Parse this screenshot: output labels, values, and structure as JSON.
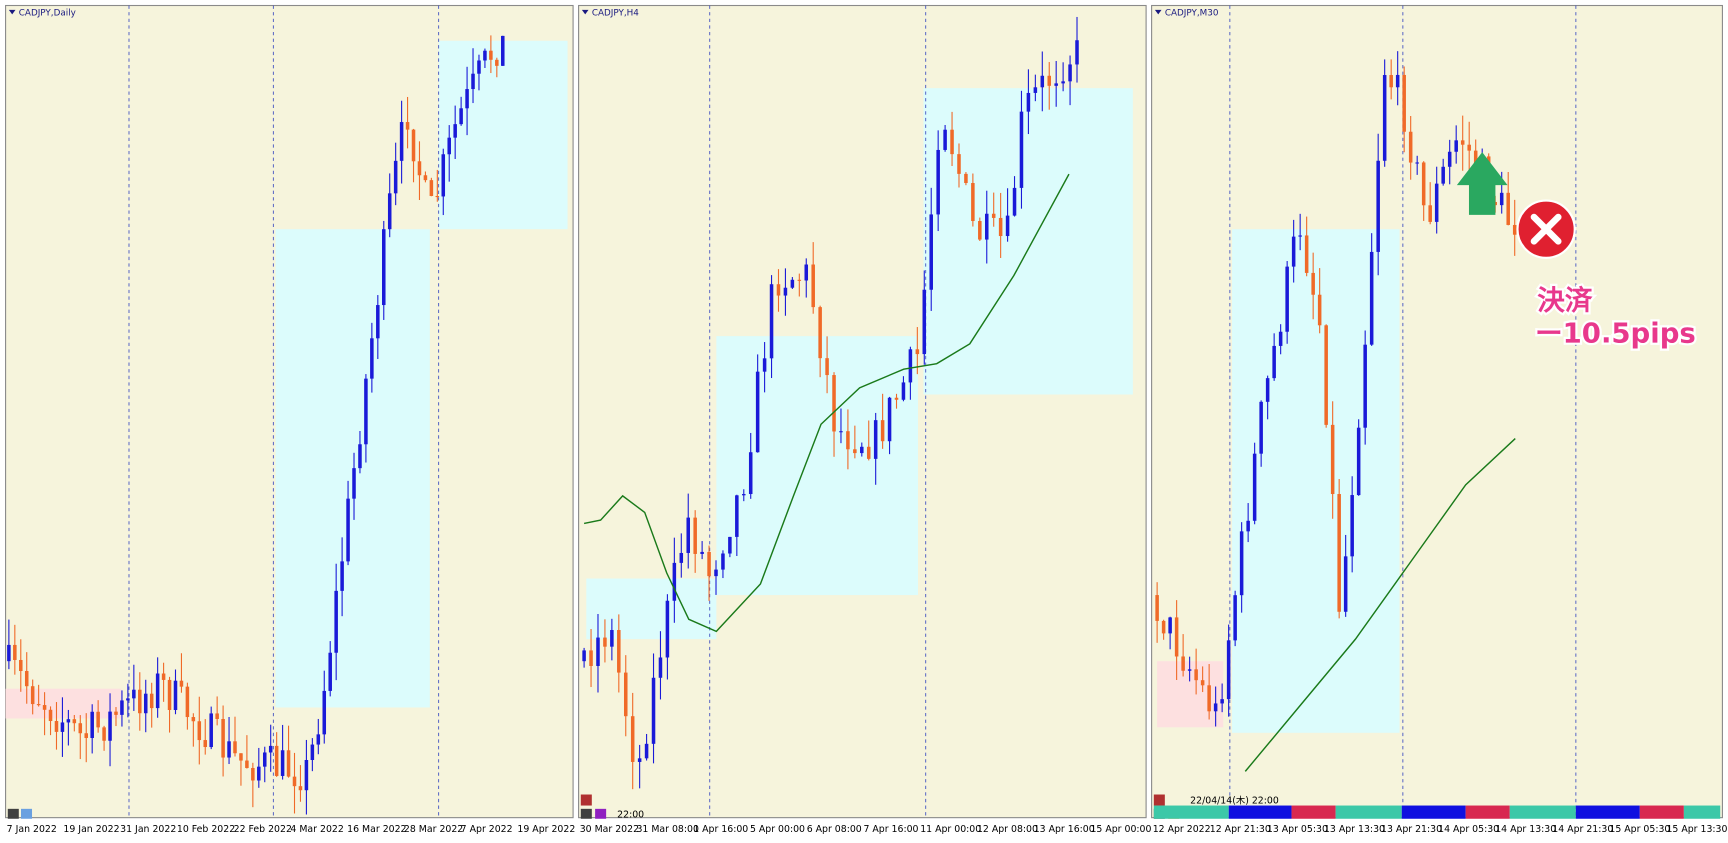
{
  "panels": [
    {
      "title": "CADJPY,Daily",
      "xlabels": [
        "7 Jan 2022",
        "19 Jan 2022",
        "31 Jan 2022",
        "10 Feb 2022",
        "22 Feb 2022",
        "4 Mar 2022",
        "16 Mar 2022",
        "28 Mar 2022",
        "7 Apr 2022",
        "19 Apr 2022"
      ]
    },
    {
      "title": "CADJPY,H4",
      "xlabels": [
        "30 Mar 2022",
        "31 Mar 08:00",
        "1 Apr 16:00",
        "5 Apr 00:00",
        "6 Apr 08:00",
        "7 Apr 16:00",
        "11 Apr 00:00",
        "12 Apr 08:00",
        "13 Apr 16:00",
        "15 Apr 00:00"
      ],
      "time": "22:00"
    },
    {
      "title": "CADJPY,M30",
      "xlabels": [
        "12 Apr 2022",
        "12 Apr 21:30",
        "13 Apr 05:30",
        "13 Apr 13:30",
        "13 Apr 21:30",
        "14 Apr 05:30",
        "14 Apr 13:30",
        "14 Apr 21:30",
        "15 Apr 05:30",
        "15 Apr 13:30"
      ],
      "time": "22/04/14(木) 22:00"
    }
  ],
  "annotation": {
    "line1": "決済",
    "line2": "ー10.5pips"
  }
}
